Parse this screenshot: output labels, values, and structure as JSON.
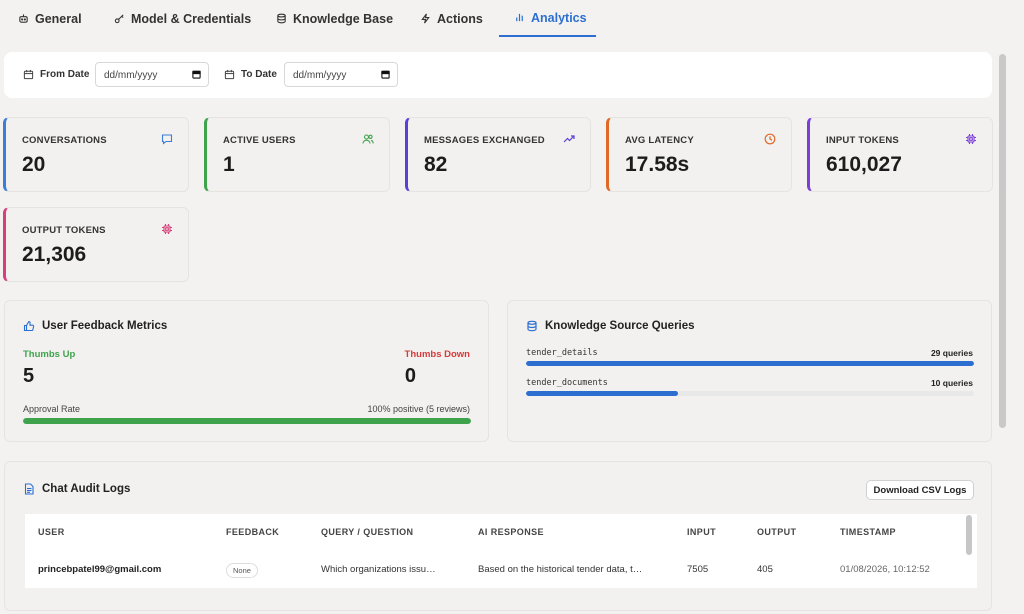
{
  "tabs": [
    {
      "label": "General",
      "icon": "bot-icon"
    },
    {
      "label": "Model & Credentials",
      "icon": "key-icon"
    },
    {
      "label": "Knowledge Base",
      "icon": "database-icon"
    },
    {
      "label": "Actions",
      "icon": "lightning-icon"
    },
    {
      "label": "Analytics",
      "icon": "bar-chart-icon",
      "active": true
    }
  ],
  "filters": {
    "from_label": "From Date",
    "from_value": "dd/mm/yyyy",
    "to_label": "To Date",
    "to_value": "dd/mm/yyyy"
  },
  "stats": [
    {
      "label": "CONVERSATIONS",
      "value": "20",
      "color": "#3b7dd8",
      "icon": "message-icon"
    },
    {
      "label": "ACTIVE USERS",
      "value": "1",
      "color": "#3fa34d",
      "icon": "users-icon"
    },
    {
      "label": "MESSAGES EXCHANGED",
      "value": "82",
      "color": "#5b3fd6",
      "icon": "trend-up-icon"
    },
    {
      "label": "AVG LATENCY",
      "value": "17.58s",
      "color": "#e0692a",
      "icon": "clock-icon"
    },
    {
      "label": "INPUT TOKENS",
      "value": "610,027",
      "color": "#7b3fd6",
      "icon": "chip-icon"
    },
    {
      "label": "OUTPUT TOKENS",
      "value": "21,306",
      "color": "#d63f7a",
      "icon": "chip-icon"
    }
  ],
  "feedback": {
    "title": "User Feedback Metrics",
    "thumbs_up_label": "Thumbs Up",
    "thumbs_up_value": "5",
    "thumbs_down_label": "Thumbs Down",
    "thumbs_down_value": "0",
    "approval_label": "Approval Rate",
    "approval_text": "100% positive (5 reviews)",
    "approval_fraction": 1.0,
    "up_color": "#3fa34d",
    "down_color": "#d63a3a"
  },
  "knowledge": {
    "title": "Knowledge Source Queries",
    "sources": [
      {
        "name": "tender_details",
        "count_label": "29 queries",
        "fraction": 1.0
      },
      {
        "name": "tender_documents",
        "count_label": "10 queries",
        "fraction": 0.34
      }
    ],
    "bar_color": "#2c6fd1"
  },
  "audit": {
    "title": "Chat Audit Logs",
    "download_label": "Download CSV Logs",
    "columns": [
      "USER",
      "FEEDBACK",
      "QUERY / QUESTION",
      "AI RESPONSE",
      "INPUT",
      "OUTPUT",
      "TIMESTAMP"
    ],
    "rows": [
      {
        "user": "princebpatel99@gmail.com",
        "feedback": "None",
        "query": "Which organizations issu…",
        "response": "Based on the historical tender data, t…",
        "input": "7505",
        "output": "405",
        "timestamp": "01/08/2026, 10:12:52"
      }
    ]
  }
}
